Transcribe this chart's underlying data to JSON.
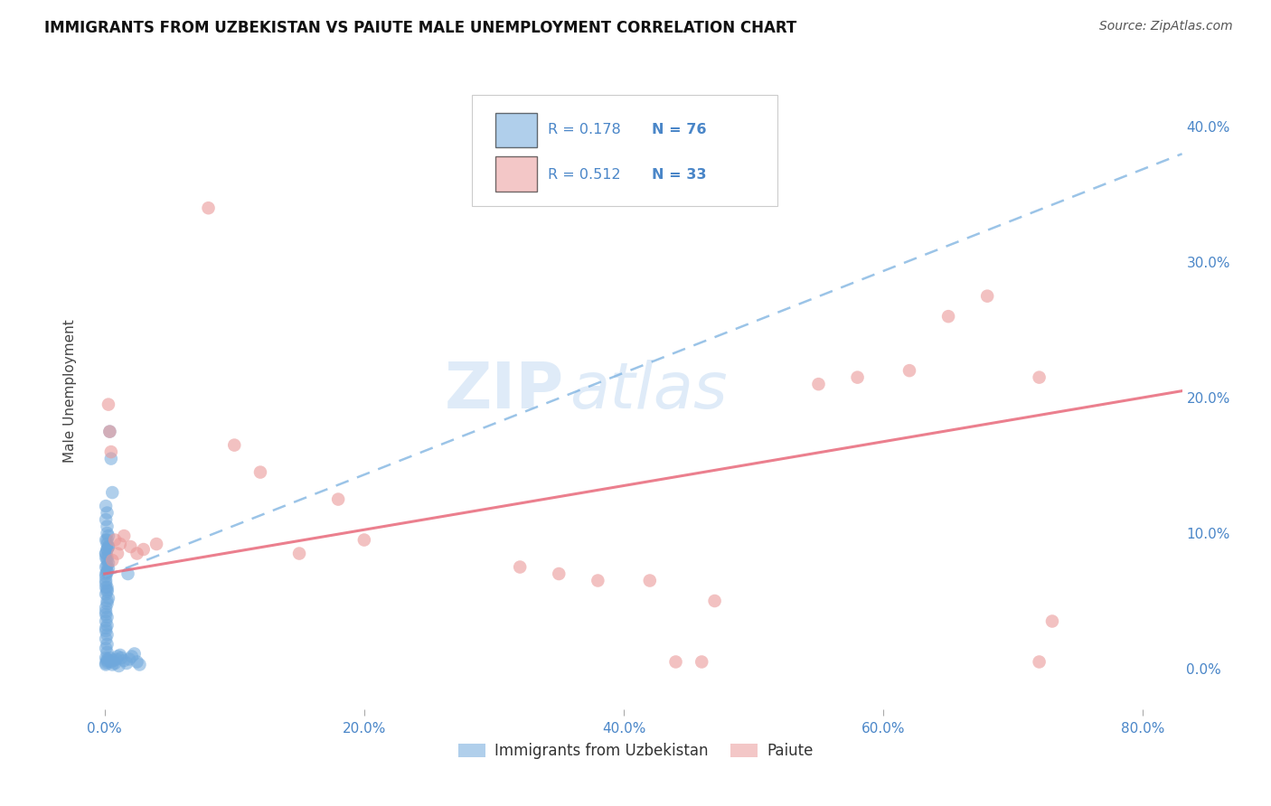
{
  "title": "IMMIGRANTS FROM UZBEKISTAN VS PAIUTE MALE UNEMPLOYMENT CORRELATION CHART",
  "source": "Source: ZipAtlas.com",
  "xlabel_ticks": [
    "0.0%",
    "20.0%",
    "40.0%",
    "60.0%",
    "80.0%"
  ],
  "ylabel_ticks": [
    "0.0%",
    "10.0%",
    "20.0%",
    "30.0%",
    "40.0%"
  ],
  "xlabel_tick_vals": [
    0.0,
    0.2,
    0.4,
    0.6,
    0.8
  ],
  "ylabel_tick_vals": [
    0.0,
    0.1,
    0.2,
    0.3,
    0.4
  ],
  "xlim": [
    -0.012,
    0.83
  ],
  "ylim": [
    -0.03,
    0.44
  ],
  "ylabel": "Male Unemployment",
  "legend_labels": [
    "Immigrants from Uzbekistan",
    "Paiute"
  ],
  "blue_color": "#6fa8dc",
  "pink_color": "#ea9999",
  "blue_line_color": "#7ab0e0",
  "pink_line_color": "#e8697a",
  "legend_r_blue": "R = 0.178",
  "legend_n_blue": "N = 76",
  "legend_r_pink": "R = 0.512",
  "legend_n_pink": "N = 33",
  "watermark_zip": "ZIP",
  "watermark_atlas": "atlas",
  "blue_scatter_x": [
    0.001,
    0.002,
    0.001,
    0.003,
    0.002,
    0.001,
    0.002,
    0.003,
    0.001,
    0.002,
    0.001,
    0.002,
    0.001,
    0.002,
    0.001,
    0.003,
    0.002,
    0.001,
    0.002,
    0.001,
    0.002,
    0.001,
    0.002,
    0.001,
    0.002,
    0.001,
    0.003,
    0.002,
    0.001,
    0.002,
    0.001,
    0.002,
    0.001,
    0.002,
    0.001,
    0.002,
    0.001,
    0.002,
    0.001,
    0.002,
    0.001,
    0.002,
    0.001,
    0.002,
    0.003,
    0.002,
    0.001,
    0.002,
    0.001,
    0.002,
    0.003,
    0.002,
    0.001,
    0.002,
    0.001,
    0.004,
    0.005,
    0.006,
    0.007,
    0.008,
    0.009,
    0.01,
    0.011,
    0.012,
    0.013,
    0.015,
    0.017,
    0.019,
    0.021,
    0.023,
    0.025,
    0.027,
    0.004,
    0.005,
    0.006,
    0.018
  ],
  "blue_scatter_y": [
    0.085,
    0.105,
    0.095,
    0.09,
    0.08,
    0.075,
    0.082,
    0.078,
    0.07,
    0.088,
    0.065,
    0.072,
    0.068,
    0.076,
    0.06,
    0.074,
    0.071,
    0.063,
    0.058,
    0.055,
    0.05,
    0.045,
    0.06,
    0.042,
    0.048,
    0.04,
    0.052,
    0.057,
    0.035,
    0.038,
    0.03,
    0.032,
    0.028,
    0.025,
    0.022,
    0.018,
    0.015,
    0.012,
    0.008,
    0.005,
    0.003,
    0.006,
    0.004,
    0.007,
    0.09,
    0.095,
    0.085,
    0.1,
    0.11,
    0.115,
    0.098,
    0.092,
    0.12,
    0.088,
    0.082,
    0.008,
    0.005,
    0.003,
    0.006,
    0.004,
    0.007,
    0.009,
    0.002,
    0.01,
    0.008,
    0.006,
    0.004,
    0.007,
    0.009,
    0.011,
    0.005,
    0.003,
    0.175,
    0.155,
    0.13,
    0.07
  ],
  "pink_scatter_x": [
    0.003,
    0.004,
    0.005,
    0.006,
    0.008,
    0.01,
    0.012,
    0.015,
    0.02,
    0.025,
    0.03,
    0.04,
    0.08,
    0.1,
    0.12,
    0.15,
    0.18,
    0.2,
    0.32,
    0.35,
    0.38,
    0.42,
    0.55,
    0.58,
    0.62,
    0.65,
    0.68,
    0.72,
    0.72,
    0.73,
    0.44,
    0.46,
    0.47
  ],
  "pink_scatter_y": [
    0.195,
    0.175,
    0.16,
    0.08,
    0.095,
    0.085,
    0.092,
    0.098,
    0.09,
    0.085,
    0.088,
    0.092,
    0.34,
    0.165,
    0.145,
    0.085,
    0.125,
    0.095,
    0.075,
    0.07,
    0.065,
    0.065,
    0.21,
    0.215,
    0.22,
    0.26,
    0.275,
    0.215,
    0.005,
    0.035,
    0.005,
    0.005,
    0.05
  ],
  "blue_trendline_points": [
    [
      0.0,
      0.068
    ],
    [
      0.83,
      0.38
    ]
  ],
  "pink_trendline_points": [
    [
      0.0,
      0.07
    ],
    [
      0.83,
      0.205
    ]
  ]
}
